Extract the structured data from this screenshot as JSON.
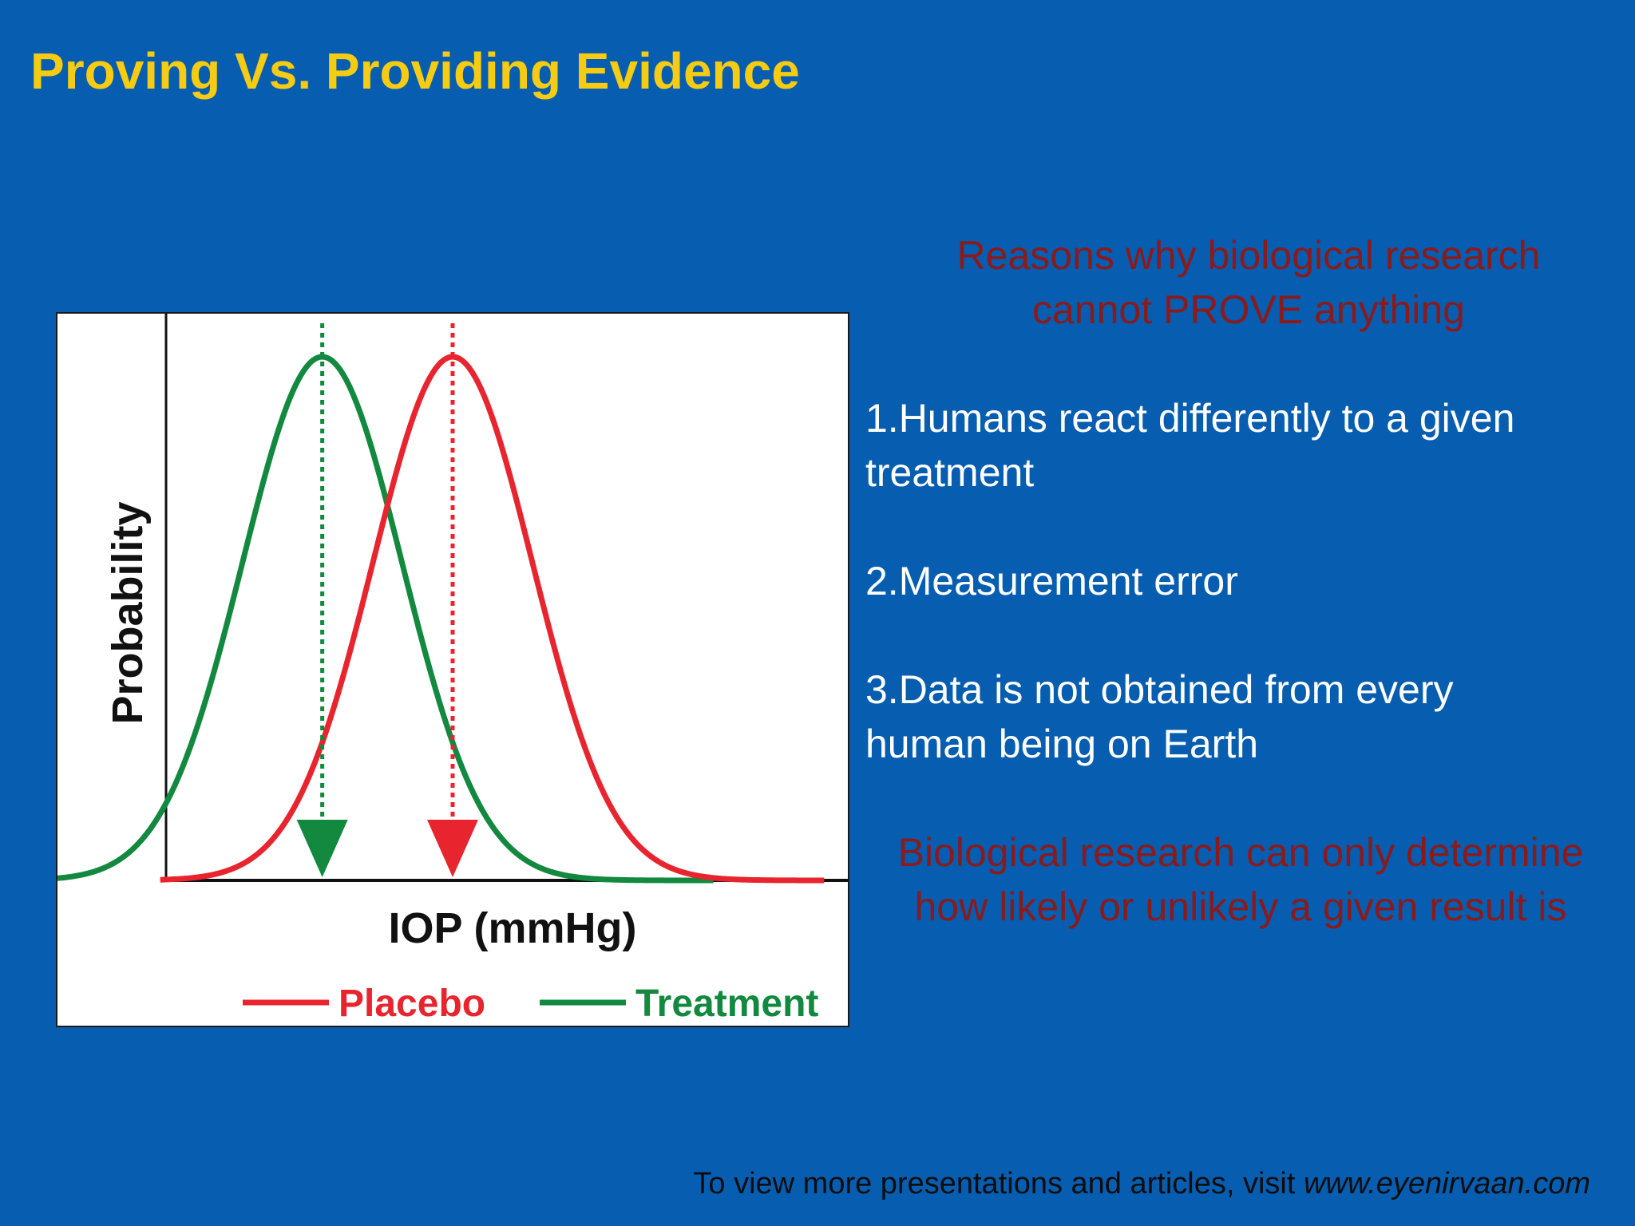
{
  "slide": {
    "title": "Proving Vs. Providing Evidence",
    "reasons_heading": "Reasons why biological research cannot PROVE anything",
    "reasons": [
      "1.Humans react differently to a given treatment",
      "2.Measurement error",
      "3.Data is not obtained from every human being on Earth"
    ],
    "conclusion": "Biological research can only determine how likely or unlikely a given result is",
    "footer_text": "To view more presentations and articles, visit ",
    "footer_url": "www.eyenirvaan.com"
  },
  "colors": {
    "background": "#075db0",
    "title": "#f5cb14",
    "placebo": "#e8252f",
    "treatment": "#12893f",
    "dark_red_text": "#8b1a1a"
  },
  "chart_data": {
    "type": "line",
    "xlabel": "IOP (mmHg)",
    "ylabel": "Probability",
    "grid": false,
    "legend_position": "bottom",
    "series": [
      {
        "name": "Placebo",
        "color": "#e8252f",
        "mean": 0.5,
        "sd": 0.101,
        "peak": 1.0
      },
      {
        "name": "Treatment",
        "color": "#12893f",
        "mean": 0.335,
        "sd": 0.101,
        "peak": 1.0
      }
    ],
    "xlim": [
      0,
      1
    ],
    "ylim": [
      0,
      1
    ]
  }
}
